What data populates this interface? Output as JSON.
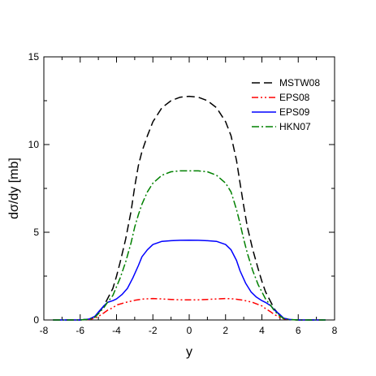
{
  "chart_data": {
    "type": "line",
    "title": "",
    "xlabel": "y",
    "ylabel": "dσ/dy [mb]",
    "xlim": [
      -8,
      8
    ],
    "ylim": [
      0,
      15
    ],
    "xticks": [
      -8,
      -6,
      -4,
      -2,
      0,
      2,
      4,
      6,
      8
    ],
    "yticks": [
      0,
      5,
      10,
      15
    ],
    "grid": false,
    "legend_position": "top-right",
    "series": [
      {
        "name": "MSTW08",
        "color": "#000000",
        "dash": "dashed",
        "x": [
          -7.5,
          -6,
          -5.5,
          -5.2,
          -5,
          -4.7,
          -4.5,
          -4.2,
          -4,
          -3.8,
          -3.5,
          -3.2,
          -3,
          -2.8,
          -2.6,
          -2.3,
          -2,
          -1.5,
          -1,
          -0.5,
          0,
          0.5,
          1,
          1.5,
          2,
          2.3,
          2.6,
          2.8,
          3,
          3.2,
          3.5,
          3.8,
          4,
          4.2,
          4.5,
          4.7,
          5,
          5.2,
          5.5,
          6,
          7.5
        ],
        "y": [
          0,
          0,
          0.05,
          0.2,
          0.4,
          0.8,
          1.2,
          1.8,
          2.5,
          3.3,
          4.6,
          6.2,
          7.6,
          8.8,
          9.6,
          10.5,
          11.3,
          12.1,
          12.5,
          12.7,
          12.75,
          12.7,
          12.5,
          12.1,
          11.3,
          10.5,
          9.1,
          7.8,
          6.5,
          5.3,
          4.0,
          2.9,
          2.2,
          1.6,
          1.0,
          0.6,
          0.25,
          0.1,
          0.03,
          0,
          0
        ]
      },
      {
        "name": "EPS08",
        "color": "#ff0000",
        "dash": "dash-dot-dot",
        "x": [
          -7.5,
          -6,
          -5.5,
          -5.2,
          -5,
          -4.7,
          -4.5,
          -4.2,
          -4,
          -3.5,
          -3,
          -2.5,
          -2,
          -1.5,
          -1,
          -0.5,
          0,
          0.5,
          1,
          1.5,
          2,
          2.5,
          3,
          3.5,
          4,
          4.2,
          4.5,
          4.7,
          5,
          5.2,
          5.5,
          6,
          7.5
        ],
        "y": [
          0,
          0,
          0.03,
          0.1,
          0.2,
          0.4,
          0.55,
          0.7,
          0.85,
          1.0,
          1.12,
          1.2,
          1.22,
          1.2,
          1.17,
          1.15,
          1.15,
          1.15,
          1.17,
          1.2,
          1.22,
          1.2,
          1.12,
          1.0,
          0.8,
          0.65,
          0.45,
          0.3,
          0.15,
          0.07,
          0.02,
          0,
          0
        ]
      },
      {
        "name": "EPS09",
        "color": "#0000ff",
        "dash": "solid",
        "x": [
          -7.5,
          -6,
          -5.5,
          -5.2,
          -5,
          -4.7,
          -4.5,
          -4.2,
          -4,
          -3.7,
          -3.4,
          -3.1,
          -2.8,
          -2.6,
          -2.3,
          -2,
          -1.5,
          -1,
          -0.5,
          0,
          0.5,
          1,
          1.5,
          2,
          2.3,
          2.6,
          2.8,
          3.1,
          3.4,
          3.7,
          4,
          4.2,
          4.5,
          4.7,
          5,
          5.2,
          5.5,
          6,
          7.5
        ],
        "y": [
          0,
          0,
          0.05,
          0.2,
          0.45,
          0.8,
          1.0,
          1.1,
          1.2,
          1.45,
          1.8,
          2.4,
          3.1,
          3.6,
          4.0,
          4.3,
          4.48,
          4.52,
          4.54,
          4.55,
          4.54,
          4.52,
          4.48,
          4.3,
          4.0,
          3.4,
          2.8,
          2.1,
          1.6,
          1.3,
          1.1,
          1.0,
          0.8,
          0.55,
          0.3,
          0.1,
          0.03,
          0,
          0
        ]
      },
      {
        "name": "HKN07",
        "color": "#008000",
        "dash": "dash-dot",
        "x": [
          -7.5,
          -6,
          -5.5,
          -5.2,
          -5,
          -4.7,
          -4.5,
          -4.2,
          -4,
          -3.8,
          -3.5,
          -3.2,
          -3,
          -2.8,
          -2.6,
          -2.3,
          -2,
          -1.5,
          -1,
          -0.5,
          0,
          0.5,
          1,
          1.5,
          2,
          2.3,
          2.6,
          2.8,
          3,
          3.2,
          3.5,
          3.8,
          4,
          4.2,
          4.5,
          4.7,
          5,
          5.2,
          5.5,
          6,
          7.5
        ],
        "y": [
          0,
          0,
          0.04,
          0.15,
          0.35,
          0.7,
          1.0,
          1.4,
          1.9,
          2.4,
          3.3,
          4.4,
          5.3,
          6.0,
          6.6,
          7.3,
          7.8,
          8.25,
          8.45,
          8.5,
          8.5,
          8.5,
          8.45,
          8.25,
          7.8,
          7.3,
          6.3,
          5.5,
          4.6,
          3.8,
          2.8,
          2.0,
          1.6,
          1.2,
          0.8,
          0.5,
          0.22,
          0.08,
          0.02,
          0,
          0
        ]
      }
    ]
  }
}
